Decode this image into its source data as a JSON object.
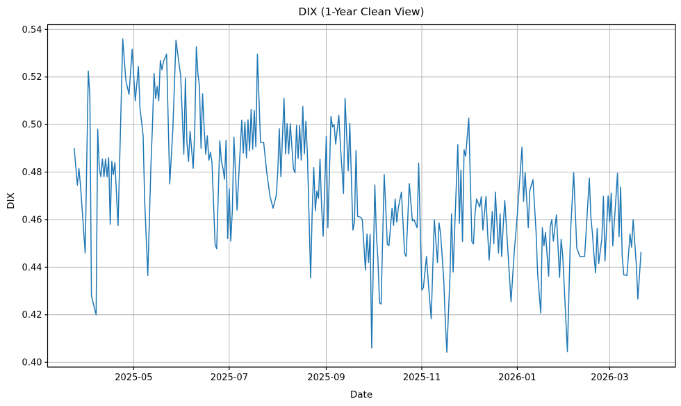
{
  "chart_data": {
    "type": "line",
    "title": "DIX (1-Year Clean View)",
    "xlabel": "Date",
    "ylabel": "DIX",
    "grid": true,
    "line_color": "#1f77b4",
    "grid_color": "#b0b0b0",
    "spine_color": "#000000",
    "background": "#ffffff",
    "xlim": [
      "2025-03-07",
      "2026-04-12"
    ],
    "ylim": [
      0.398,
      0.542
    ],
    "y_ticks": [
      {
        "v": 0.4,
        "label": "0.40"
      },
      {
        "v": 0.42,
        "label": "0.42"
      },
      {
        "v": 0.44,
        "label": "0.44"
      },
      {
        "v": 0.46,
        "label": "0.46"
      },
      {
        "v": 0.48,
        "label": "0.48"
      },
      {
        "v": 0.5,
        "label": "0.50"
      },
      {
        "v": 0.52,
        "label": "0.52"
      },
      {
        "v": 0.54,
        "label": "0.54"
      }
    ],
    "x_ticks": [
      {
        "date": "2025-05-01",
        "label": "2025-05"
      },
      {
        "date": "2025-07-01",
        "label": "2025-07"
      },
      {
        "date": "2025-09-01",
        "label": "2025-09"
      },
      {
        "date": "2025-11-01",
        "label": "2025-11"
      },
      {
        "date": "2026-01-01",
        "label": "2026-01"
      },
      {
        "date": "2026-03-01",
        "label": "2026-03"
      }
    ],
    "series": [
      {
        "name": "DIX",
        "points": [
          [
            "2025-03-24",
            0.49
          ],
          [
            "2025-03-26",
            0.4745
          ],
          [
            "2025-03-27",
            0.4815
          ],
          [
            "2025-03-28",
            0.4745
          ],
          [
            "2025-03-31",
            0.446
          ],
          [
            "2025-04-02",
            0.5225
          ],
          [
            "2025-04-03",
            0.512
          ],
          [
            "2025-04-04",
            0.428
          ],
          [
            "2025-04-06",
            0.4225
          ],
          [
            "2025-04-07",
            0.42
          ],
          [
            "2025-04-08",
            0.498
          ],
          [
            "2025-04-09",
            0.482
          ],
          [
            "2025-04-10",
            0.478
          ],
          [
            "2025-04-11",
            0.4855
          ],
          [
            "2025-04-12",
            0.478
          ],
          [
            "2025-04-13",
            0.4855
          ],
          [
            "2025-04-14",
            0.478
          ],
          [
            "2025-04-15",
            0.486
          ],
          [
            "2025-04-16",
            0.458
          ],
          [
            "2025-04-17",
            0.4845
          ],
          [
            "2025-04-18",
            0.479
          ],
          [
            "2025-04-19",
            0.484
          ],
          [
            "2025-04-21",
            0.4575
          ],
          [
            "2025-04-24",
            0.536
          ],
          [
            "2025-04-26",
            0.5185
          ],
          [
            "2025-04-28",
            0.5127
          ],
          [
            "2025-04-30",
            0.5317
          ],
          [
            "2025-05-02",
            0.51
          ],
          [
            "2025-05-04",
            0.5244
          ],
          [
            "2025-05-05",
            0.507
          ],
          [
            "2025-05-07",
            0.4955
          ],
          [
            "2025-05-08",
            0.468
          ],
          [
            "2025-05-10",
            0.4365
          ],
          [
            "2025-05-12",
            0.483
          ],
          [
            "2025-05-13",
            0.5
          ],
          [
            "2025-05-14",
            0.5215
          ],
          [
            "2025-05-15",
            0.511
          ],
          [
            "2025-05-16",
            0.516
          ],
          [
            "2025-05-17",
            0.51
          ],
          [
            "2025-05-18",
            0.527
          ],
          [
            "2025-05-19",
            0.523
          ],
          [
            "2025-05-20",
            0.5265
          ],
          [
            "2025-05-22",
            0.5296
          ],
          [
            "2025-05-24",
            0.475
          ],
          [
            "2025-05-26",
            0.498
          ],
          [
            "2025-05-28",
            0.5355
          ],
          [
            "2025-05-30",
            0.5253
          ],
          [
            "2025-05-31",
            0.5205
          ],
          [
            "2025-06-02",
            0.4875
          ],
          [
            "2025-06-03",
            0.5196
          ],
          [
            "2025-06-04",
            0.4923
          ],
          [
            "2025-06-05",
            0.4845
          ],
          [
            "2025-06-06",
            0.4972
          ],
          [
            "2025-06-08",
            0.4816
          ],
          [
            "2025-06-09",
            0.498
          ],
          [
            "2025-06-10",
            0.5327
          ],
          [
            "2025-06-11",
            0.5215
          ],
          [
            "2025-06-12",
            0.516
          ],
          [
            "2025-06-13",
            0.49
          ],
          [
            "2025-06-14",
            0.5129
          ],
          [
            "2025-06-15",
            0.4982
          ],
          [
            "2025-06-16",
            0.4875
          ],
          [
            "2025-06-17",
            0.4953
          ],
          [
            "2025-06-18",
            0.485
          ],
          [
            "2025-06-19",
            0.4884
          ],
          [
            "2025-06-20",
            0.484
          ],
          [
            "2025-06-22",
            0.4495
          ],
          [
            "2025-06-23",
            0.4478
          ],
          [
            "2025-06-25",
            0.4932
          ],
          [
            "2025-06-26",
            0.4846
          ],
          [
            "2025-06-27",
            0.4816
          ],
          [
            "2025-06-28",
            0.477
          ],
          [
            "2025-06-29",
            0.4934
          ],
          [
            "2025-06-30",
            0.452
          ],
          [
            "2025-07-01",
            0.473
          ],
          [
            "2025-07-02",
            0.451
          ],
          [
            "2025-07-03",
            0.464
          ],
          [
            "2025-07-04",
            0.4947
          ],
          [
            "2025-07-05",
            0.4797
          ],
          [
            "2025-07-06",
            0.464
          ],
          [
            "2025-07-07",
            0.477
          ],
          [
            "2025-07-09",
            0.5018
          ],
          [
            "2025-07-10",
            0.488
          ],
          [
            "2025-07-11",
            0.501
          ],
          [
            "2025-07-12",
            0.486
          ],
          [
            "2025-07-13",
            0.502
          ],
          [
            "2025-07-14",
            0.489
          ],
          [
            "2025-07-15",
            0.5063
          ],
          [
            "2025-07-16",
            0.4896
          ],
          [
            "2025-07-17",
            0.506
          ],
          [
            "2025-07-18",
            0.4906
          ],
          [
            "2025-07-19",
            0.5296
          ],
          [
            "2025-07-21",
            0.4925
          ],
          [
            "2025-07-23",
            0.4925
          ],
          [
            "2025-07-25",
            0.4797
          ],
          [
            "2025-07-27",
            0.47
          ],
          [
            "2025-07-29",
            0.4648
          ],
          [
            "2025-07-31",
            0.47
          ],
          [
            "2025-08-01",
            0.48
          ],
          [
            "2025-08-02",
            0.4983
          ],
          [
            "2025-08-03",
            0.478
          ],
          [
            "2025-08-05",
            0.511
          ],
          [
            "2025-08-06",
            0.4876
          ],
          [
            "2025-08-07",
            0.5004
          ],
          [
            "2025-08-08",
            0.4876
          ],
          [
            "2025-08-09",
            0.5004
          ],
          [
            "2025-08-11",
            0.4816
          ],
          [
            "2025-08-12",
            0.4797
          ],
          [
            "2025-08-13",
            0.4996
          ],
          [
            "2025-08-14",
            0.4857
          ],
          [
            "2025-08-15",
            0.4996
          ],
          [
            "2025-08-16",
            0.485
          ],
          [
            "2025-08-17",
            0.5076
          ],
          [
            "2025-08-18",
            0.4876
          ],
          [
            "2025-08-19",
            0.5014
          ],
          [
            "2025-08-20",
            0.486
          ],
          [
            "2025-08-22",
            0.4355
          ],
          [
            "2025-08-23",
            0.4634
          ],
          [
            "2025-08-24",
            0.482
          ],
          [
            "2025-08-25",
            0.4637
          ],
          [
            "2025-08-26",
            0.472
          ],
          [
            "2025-08-27",
            0.469
          ],
          [
            "2025-08-28",
            0.4854
          ],
          [
            "2025-08-29",
            0.4656
          ],
          [
            "2025-08-30",
            0.453
          ],
          [
            "2025-09-01",
            0.495
          ],
          [
            "2025-09-02",
            0.4566
          ],
          [
            "2025-09-04",
            0.5034
          ],
          [
            "2025-09-05",
            0.499
          ],
          [
            "2025-09-06",
            0.5
          ],
          [
            "2025-09-07",
            0.4918
          ],
          [
            "2025-09-09",
            0.5039
          ],
          [
            "2025-09-10",
            0.4916
          ],
          [
            "2025-09-12",
            0.471
          ],
          [
            "2025-09-13",
            0.511
          ],
          [
            "2025-09-15",
            0.4806
          ],
          [
            "2025-09-16",
            0.5005
          ],
          [
            "2025-09-18",
            0.4556
          ],
          [
            "2025-09-19",
            0.459
          ],
          [
            "2025-09-20",
            0.489
          ],
          [
            "2025-09-21",
            0.4614
          ],
          [
            "2025-09-23",
            0.461
          ],
          [
            "2025-09-24",
            0.46
          ],
          [
            "2025-09-26",
            0.4388
          ],
          [
            "2025-09-27",
            0.454
          ],
          [
            "2025-09-28",
            0.442
          ],
          [
            "2025-09-29",
            0.4538
          ],
          [
            "2025-09-30",
            0.406
          ],
          [
            "2025-10-02",
            0.4746
          ],
          [
            "2025-10-03",
            0.4538
          ],
          [
            "2025-10-04",
            0.443
          ],
          [
            "2025-10-05",
            0.425
          ],
          [
            "2025-10-06",
            0.4245
          ],
          [
            "2025-10-08",
            0.479
          ],
          [
            "2025-10-10",
            0.4497
          ],
          [
            "2025-10-11",
            0.449
          ],
          [
            "2025-10-13",
            0.4648
          ],
          [
            "2025-10-14",
            0.4576
          ],
          [
            "2025-10-15",
            0.4687
          ],
          [
            "2025-10-16",
            0.459
          ],
          [
            "2025-10-17",
            0.465
          ],
          [
            "2025-10-19",
            0.4716
          ],
          [
            "2025-10-21",
            0.446
          ],
          [
            "2025-10-22",
            0.4445
          ],
          [
            "2025-10-24",
            0.4752
          ],
          [
            "2025-10-26",
            0.4595
          ],
          [
            "2025-10-27",
            0.46
          ],
          [
            "2025-10-29",
            0.4566
          ],
          [
            "2025-10-30",
            0.4838
          ],
          [
            "2025-11-01",
            0.4304
          ],
          [
            "2025-11-02",
            0.4314
          ],
          [
            "2025-11-04",
            0.4445
          ],
          [
            "2025-11-05",
            0.435
          ],
          [
            "2025-11-07",
            0.4183
          ],
          [
            "2025-11-09",
            0.46
          ],
          [
            "2025-11-11",
            0.442
          ],
          [
            "2025-11-12",
            0.4586
          ],
          [
            "2025-11-13",
            0.4542
          ],
          [
            "2025-11-15",
            0.435
          ],
          [
            "2025-11-16",
            0.4177
          ],
          [
            "2025-11-17",
            0.4042
          ],
          [
            "2025-11-19",
            0.436
          ],
          [
            "2025-11-20",
            0.4624
          ],
          [
            "2025-11-21",
            0.438
          ],
          [
            "2025-11-24",
            0.4916
          ],
          [
            "2025-11-25",
            0.4585
          ],
          [
            "2025-11-26",
            0.4808
          ],
          [
            "2025-11-27",
            0.4508
          ],
          [
            "2025-11-28",
            0.4894
          ],
          [
            "2025-11-29",
            0.4867
          ],
          [
            "2025-12-01",
            0.5027
          ],
          [
            "2025-12-03",
            0.4508
          ],
          [
            "2025-12-04",
            0.4498
          ],
          [
            "2025-12-05",
            0.4624
          ],
          [
            "2025-12-06",
            0.4687
          ],
          [
            "2025-12-08",
            0.4653
          ],
          [
            "2025-12-09",
            0.4697
          ],
          [
            "2025-12-10",
            0.4556
          ],
          [
            "2025-12-12",
            0.4697
          ],
          [
            "2025-12-13",
            0.4551
          ],
          [
            "2025-12-14",
            0.443
          ],
          [
            "2025-12-16",
            0.4634
          ],
          [
            "2025-12-17",
            0.4498
          ],
          [
            "2025-12-18",
            0.4716
          ],
          [
            "2025-12-20",
            0.4459
          ],
          [
            "2025-12-21",
            0.4624
          ],
          [
            "2025-12-22",
            0.4445
          ],
          [
            "2025-12-23",
            0.4576
          ],
          [
            "2025-12-24",
            0.468
          ],
          [
            "2025-12-28",
            0.4255
          ],
          [
            "2025-12-30",
            0.446
          ],
          [
            "2026-01-01",
            0.462
          ],
          [
            "2026-01-04",
            0.4905
          ],
          [
            "2026-01-05",
            0.4677
          ],
          [
            "2026-01-06",
            0.4799
          ],
          [
            "2026-01-08",
            0.4566
          ],
          [
            "2026-01-09",
            0.4723
          ],
          [
            "2026-01-11",
            0.4768
          ],
          [
            "2026-01-13",
            0.4547
          ],
          [
            "2026-01-14",
            0.437
          ],
          [
            "2026-01-16",
            0.4207
          ],
          [
            "2026-01-17",
            0.4566
          ],
          [
            "2026-01-18",
            0.449
          ],
          [
            "2026-01-19",
            0.4546
          ],
          [
            "2026-01-21",
            0.4362
          ],
          [
            "2026-01-22",
            0.4568
          ],
          [
            "2026-01-23",
            0.46
          ],
          [
            "2026-01-24",
            0.451
          ],
          [
            "2026-01-26",
            0.462
          ],
          [
            "2026-01-28",
            0.4357
          ],
          [
            "2026-01-29",
            0.4517
          ],
          [
            "2026-01-30",
            0.445
          ],
          [
            "2026-02-02",
            0.4045
          ],
          [
            "2026-02-04",
            0.4546
          ],
          [
            "2026-02-06",
            0.4798
          ],
          [
            "2026-02-08",
            0.448
          ],
          [
            "2026-02-10",
            0.4445
          ],
          [
            "2026-02-13",
            0.4445
          ],
          [
            "2026-02-16",
            0.4775
          ],
          [
            "2026-02-17",
            0.461
          ],
          [
            "2026-02-18",
            0.454
          ],
          [
            "2026-02-19",
            0.4448
          ],
          [
            "2026-02-20",
            0.4376
          ],
          [
            "2026-02-21",
            0.4563
          ],
          [
            "2026-02-22",
            0.4415
          ],
          [
            "2026-02-24",
            0.452
          ],
          [
            "2026-02-25",
            0.4698
          ],
          [
            "2026-02-26",
            0.4426
          ],
          [
            "2026-02-28",
            0.47
          ],
          [
            "2026-03-01",
            0.459
          ],
          [
            "2026-03-02",
            0.4712
          ],
          [
            "2026-03-03",
            0.449
          ],
          [
            "2026-03-06",
            0.4795
          ],
          [
            "2026-03-07",
            0.4528
          ],
          [
            "2026-03-08",
            0.4737
          ],
          [
            "2026-03-09",
            0.4446
          ],
          [
            "2026-03-10",
            0.4368
          ],
          [
            "2026-03-12",
            0.4365
          ],
          [
            "2026-03-14",
            0.454
          ],
          [
            "2026-03-15",
            0.4484
          ],
          [
            "2026-03-16",
            0.46
          ],
          [
            "2026-03-18",
            0.441
          ],
          [
            "2026-03-19",
            0.4266
          ],
          [
            "2026-03-21",
            0.4463
          ]
        ]
      }
    ]
  }
}
